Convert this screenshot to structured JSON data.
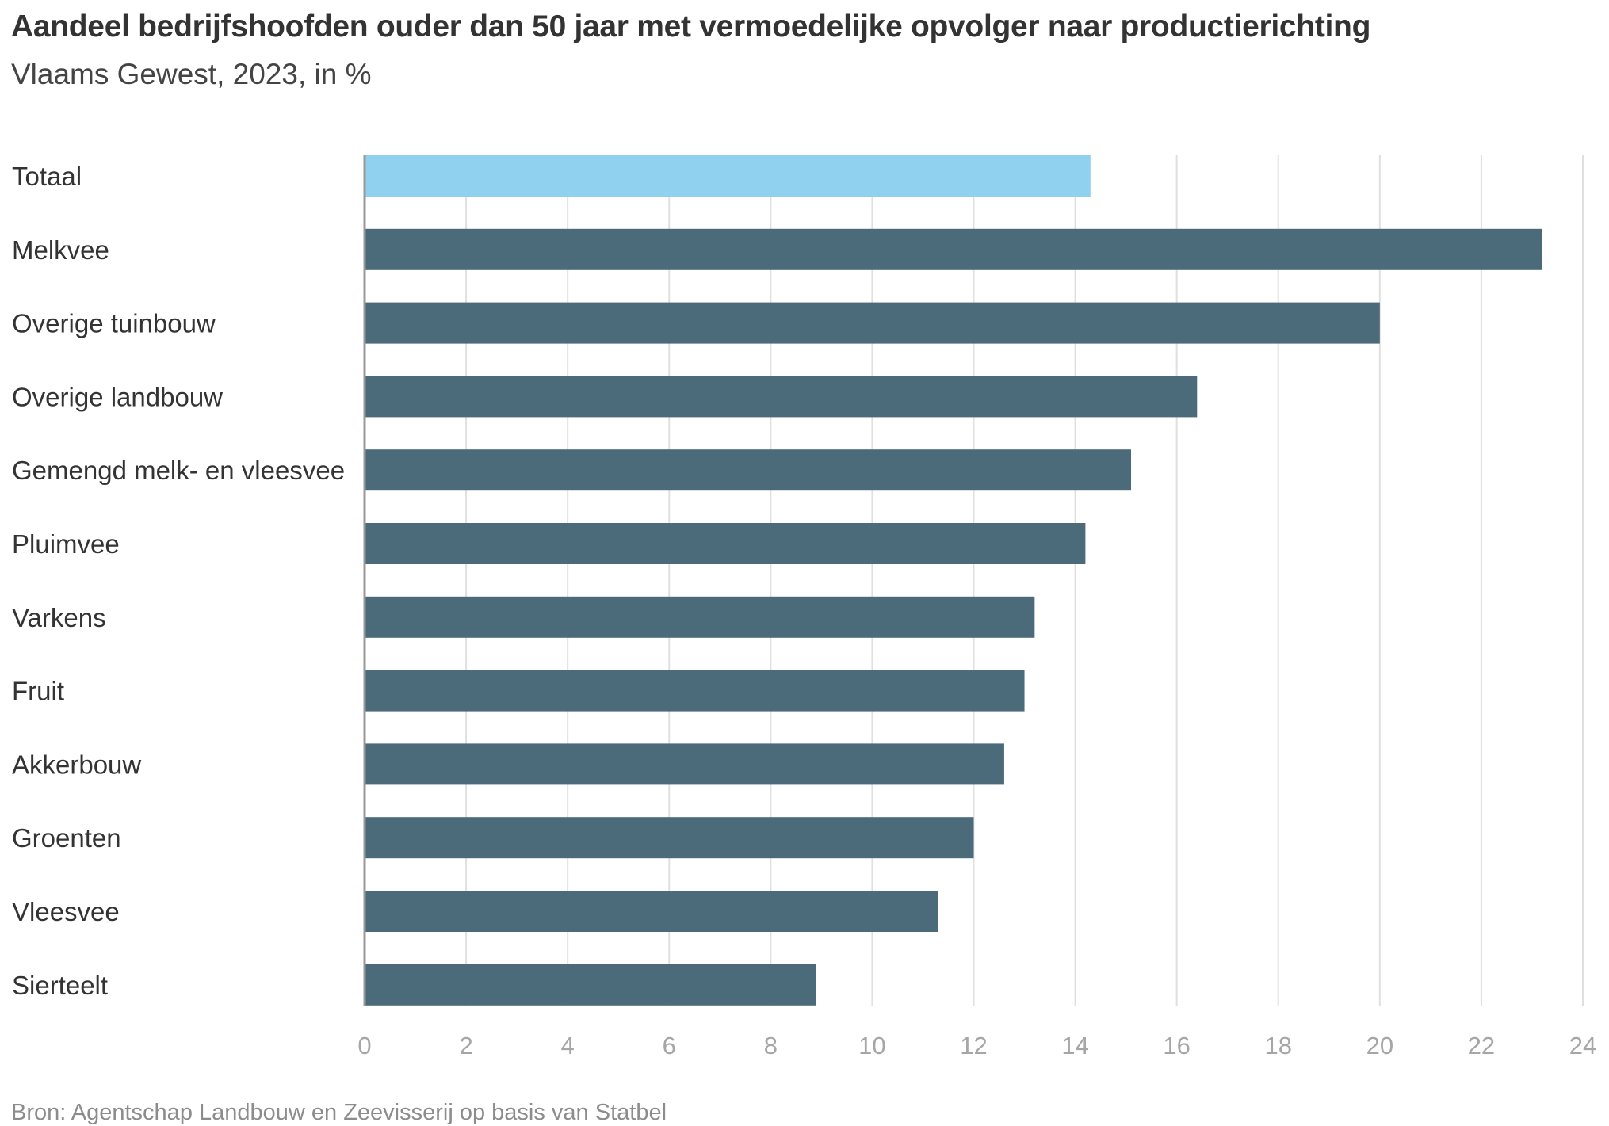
{
  "chart_data": {
    "type": "bar",
    "orientation": "horizontal",
    "title": "Aandeel bedrijfshoofden ouder dan 50 jaar met vermoedelijke opvolger naar productierichting",
    "subtitle": "Vlaams Gewest, 2023, in %",
    "source": "Bron: Agentschap Landbouw en Zeevisserij op basis van Statbel",
    "categories": [
      "Totaal",
      "Melkvee",
      "Overige tuinbouw",
      "Overige landbouw",
      "Gemengd melk- en vleesvee",
      "Pluimvee",
      "Varkens",
      "Fruit",
      "Akkerbouw",
      "Groenten",
      "Vleesvee",
      "Sierteelt"
    ],
    "values": [
      14.3,
      23.2,
      20.0,
      16.4,
      15.1,
      14.2,
      13.2,
      13.0,
      12.6,
      12.0,
      11.3,
      8.9
    ],
    "highlight_index": 0,
    "xlim": [
      0,
      24
    ],
    "xticks": [
      0,
      2,
      4,
      6,
      8,
      10,
      12,
      14,
      16,
      18,
      20,
      22,
      24
    ],
    "grid": true,
    "colors": {
      "highlight": "#8fd1ee",
      "bar": "#4b6a7a",
      "grid": "#e0e0e0",
      "axis": "#999999"
    }
  }
}
